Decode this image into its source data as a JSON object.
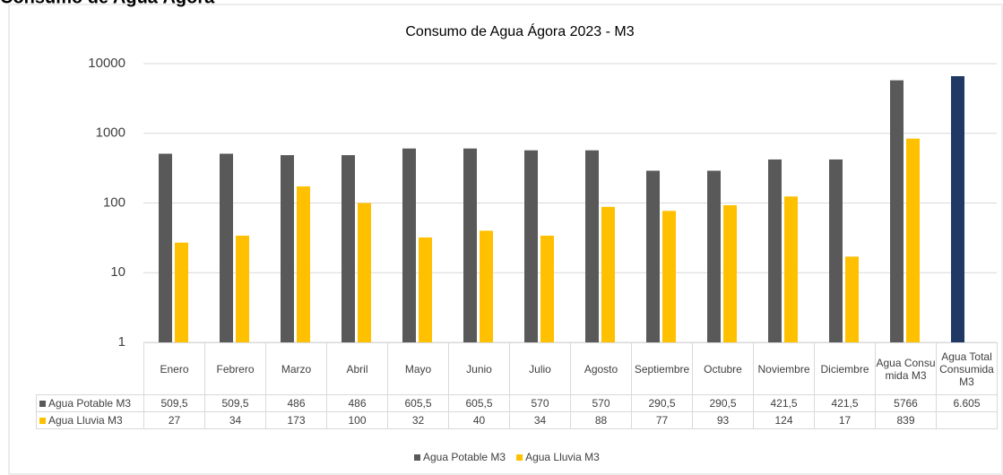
{
  "header_title": "Consumo de Agua Ágora",
  "chart_data": {
    "type": "bar",
    "title": "Consumo de Agua Ágora 2023 - M3",
    "categories": [
      "Enero",
      "Febrero",
      "Marzo",
      "Abril",
      "Mayo",
      "Junio",
      "Julio",
      "Agosto",
      "Septiembre",
      "Octubre",
      "Noviembre",
      "Diciembre",
      "Agua Consumida M3",
      "Agua Total Consumida M3"
    ],
    "series": [
      {
        "name": "Agua Potable M3",
        "color": "#595959",
        "point_colors": [
          "#595959",
          "#595959",
          "#595959",
          "#595959",
          "#595959",
          "#595959",
          "#595959",
          "#595959",
          "#595959",
          "#595959",
          "#595959",
          "#595959",
          "#595959",
          "#1f3864"
        ],
        "values": [
          509.5,
          509.5,
          486,
          486,
          605.5,
          605.5,
          570,
          570,
          290.5,
          290.5,
          421.5,
          421.5,
          5766,
          6605
        ],
        "value_labels": [
          "509,5",
          "509,5",
          "486",
          "486",
          "605,5",
          "605,5",
          "570",
          "570",
          "290,5",
          "290,5",
          "421,5",
          "421,5",
          "5766",
          "6.605"
        ]
      },
      {
        "name": "Agua Lluvia M3",
        "color": "#ffc000",
        "values": [
          27,
          34,
          173,
          100,
          32,
          40,
          34,
          88,
          77,
          93,
          124,
          17,
          839,
          null
        ]
      }
    ],
    "log_scale": true,
    "ylim": [
      1,
      10000
    ],
    "yticks": [
      1,
      10,
      100,
      1000,
      10000
    ],
    "grid": true,
    "legend": "bottom",
    "data_table": true
  }
}
